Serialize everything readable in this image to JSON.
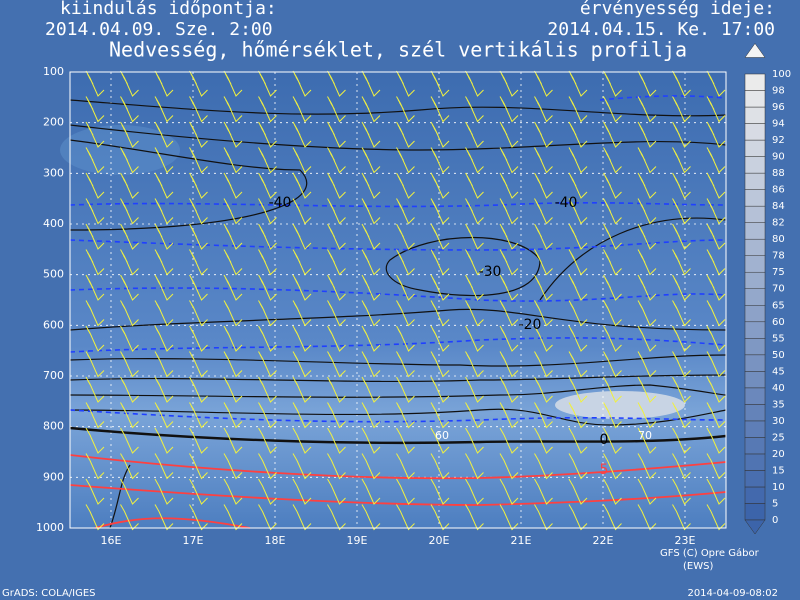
{
  "header": {
    "left_label": "kiindulás időpontja:",
    "left_value": "2014.04.09. Sze. 2:00",
    "right_label": "érvényesség ideje:",
    "right_value": "2014.04.15. Ke. 17:00"
  },
  "chart_data": {
    "type": "cross-section",
    "title": "Nedvesség, hőmérséklet, szél vertikális profilja",
    "categories": [
      "16E",
      "17E",
      "18E",
      "19E",
      "20E",
      "21E",
      "22E",
      "23E"
    ],
    "ylim": [
      1000,
      100
    ],
    "yticks": [
      100,
      200,
      300,
      400,
      500,
      600,
      700,
      800,
      900,
      1000
    ],
    "grid": true,
    "contour_labels": [
      "-40",
      "-40",
      "-30",
      "-20",
      "0",
      "5",
      "60",
      "70"
    ],
    "colorbar": {
      "ticks": [
        0,
        5,
        10,
        15,
        20,
        25,
        30,
        35,
        40,
        45,
        50,
        55,
        60,
        65,
        70,
        75,
        78,
        80,
        82,
        84,
        86,
        88,
        90,
        92,
        94,
        96,
        98,
        100
      ]
    }
  },
  "footer": {
    "credit": "GFS (C) Opre Gábor",
    "credit_sub": "(EWS)",
    "software": "GrADS: COLA/IGES",
    "timestamp": "2014-04-09-08:02"
  }
}
